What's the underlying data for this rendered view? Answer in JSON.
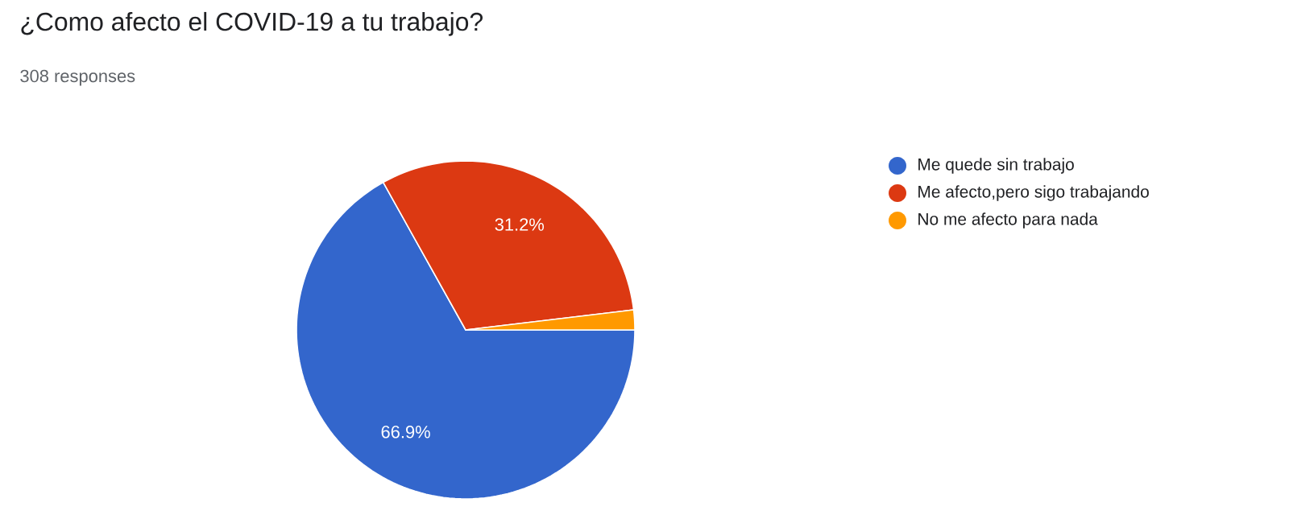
{
  "chart_data": {
    "type": "pie",
    "title": "¿Como afecto el COVID-19 a tu trabajo?",
    "subtitle": "308 responses",
    "categories": [
      "Me quede sin trabajo",
      "Me afecto,pero sigo trabajando",
      "No me afecto para nada"
    ],
    "values": [
      66.9,
      31.2,
      1.9
    ],
    "colors": [
      "#3366cc",
      "#dc3912",
      "#ff9900"
    ],
    "value_labels": [
      "66.9%",
      "31.2%",
      null
    ],
    "legend": "right"
  }
}
